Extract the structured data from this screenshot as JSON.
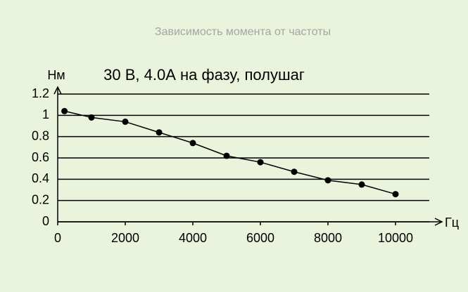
{
  "chart_data": {
    "type": "line",
    "title": "Зависимость момента от частоты",
    "subtitle": "30 В, 4.0А на фазу, полушаг",
    "y_label": "Нм",
    "x_label": "Гц",
    "x": [
      200,
      1000,
      2000,
      3000,
      4000,
      5000,
      6000,
      7000,
      8000,
      9000,
      10000
    ],
    "series": [
      {
        "color": "#000000",
        "values": [
          1.04,
          0.98,
          0.94,
          0.84,
          0.74,
          0.62,
          0.56,
          0.47,
          0.39,
          0.35,
          0.26
        ]
      }
    ],
    "xlim": [
      0,
      11000
    ],
    "xticks": [
      0,
      2000,
      4000,
      6000,
      8000,
      10000
    ],
    "ylim": [
      0,
      1.2
    ],
    "yticks": [
      0,
      0.2,
      0.4,
      0.6,
      0.8,
      1,
      1.2
    ],
    "grid": true
  }
}
